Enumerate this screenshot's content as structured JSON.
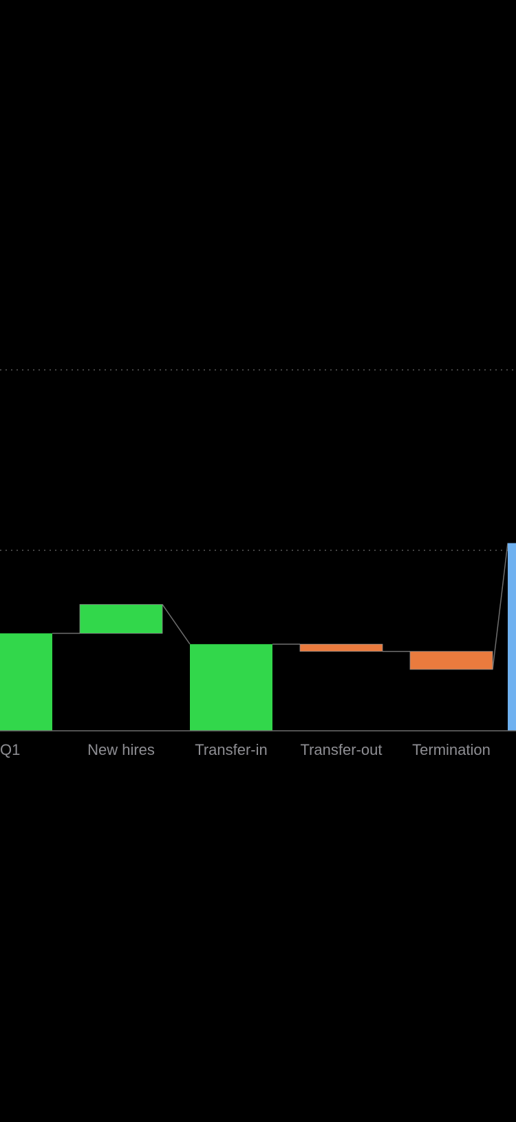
{
  "chart_data": {
    "type": "waterfall",
    "title": "",
    "xlabel": "",
    "ylabel": "",
    "categories": [
      "Q1",
      "New hires",
      "Transfer-in",
      "Transfer-out",
      "Termination",
      ""
    ],
    "bars": [
      {
        "category": "Q1",
        "base": 0,
        "value": 54,
        "kind": "total"
      },
      {
        "category": "New hires",
        "base": 54,
        "value": 16,
        "kind": "increase"
      },
      {
        "category": "Transfer-in",
        "base": 0,
        "value": 48,
        "kind": "total"
      },
      {
        "category": "Transfer-out",
        "base": 44,
        "value": 4,
        "kind": "decrease"
      },
      {
        "category": "Termination",
        "base": 34,
        "value": 10,
        "kind": "decrease"
      },
      {
        "category": "",
        "base": 0,
        "value": 104,
        "kind": "total-blue"
      }
    ],
    "connectors": [
      [
        0,
        1
      ],
      [
        1,
        2
      ],
      [
        2,
        3
      ],
      [
        3,
        4
      ],
      [
        4,
        5
      ]
    ],
    "ylim": [
      0,
      200
    ],
    "gridlines": [
      100,
      200
    ],
    "colors": {
      "background": "#000000",
      "increase": "#32d74b",
      "decrease": "#ea7b3e",
      "total": "#32d74b",
      "total-blue": "#6fb1f0",
      "connector": "#6e6e6e",
      "axis": "#6e6e6e",
      "grid": "#5a5a5a",
      "label": "#8e8e93"
    }
  }
}
